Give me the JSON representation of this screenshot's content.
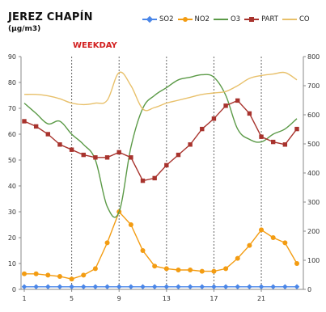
{
  "chart_data": {
    "type": "line",
    "title": "JEREZ CHAPÍN",
    "unit": "(µg/m3)",
    "subtitle": "WEEKDAY",
    "x": [
      1,
      2,
      3,
      4,
      5,
      6,
      7,
      8,
      9,
      10,
      11,
      12,
      13,
      14,
      15,
      16,
      17,
      18,
      19,
      20,
      21,
      22,
      23,
      24
    ],
    "x_ticks": [
      "1",
      "5",
      "9",
      "13",
      "17",
      "21"
    ],
    "x_tick_values": [
      1,
      5,
      9,
      13,
      17,
      21
    ],
    "ylim_left": [
      0,
      90
    ],
    "y_ticks_left": [
      "0",
      "10",
      "20",
      "30",
      "40",
      "50",
      "60",
      "70",
      "80",
      "90"
    ],
    "ylim_right": [
      0,
      800
    ],
    "y_ticks_right": [
      "0",
      "100",
      "200",
      "300",
      "400",
      "500",
      "600",
      "700",
      "800"
    ],
    "vlines": [
      5,
      9,
      13,
      17,
      21
    ],
    "grid": false,
    "legend_position": "top",
    "series": [
      {
        "name": "SO2",
        "axis": "left",
        "color": "#4a86e8",
        "marker": "diamond",
        "smooth": false,
        "values": [
          1,
          1,
          1,
          1,
          1,
          1,
          1,
          1,
          1,
          1,
          1,
          1,
          1,
          1,
          1,
          1,
          1,
          1,
          1,
          1,
          1,
          1,
          1,
          1
        ]
      },
      {
        "name": "NO2",
        "axis": "left",
        "color": "#f39c12",
        "marker": "circle",
        "smooth": false,
        "values": [
          6,
          6,
          5.5,
          5,
          4,
          5.5,
          8,
          18,
          30,
          25,
          15,
          9,
          8,
          7.5,
          7.5,
          7,
          7,
          8,
          12,
          17,
          23,
          20,
          18,
          10
        ]
      },
      {
        "name": "O3",
        "axis": "left",
        "color": "#5b9a47",
        "marker": "none",
        "smooth": true,
        "values": [
          72,
          68,
          64,
          65,
          60,
          56,
          50,
          32,
          30,
          55,
          70,
          75,
          78,
          81,
          82,
          83,
          82,
          75,
          62,
          58,
          57,
          60,
          62,
          66
        ]
      },
      {
        "name": "PART",
        "axis": "left",
        "color": "#a8332d",
        "marker": "square",
        "smooth": false,
        "values": [
          65,
          63,
          60,
          56,
          54,
          52,
          51,
          51,
          53,
          51,
          42,
          43,
          48,
          52,
          56,
          62,
          66,
          71,
          73,
          68,
          59,
          57,
          56,
          62
        ]
      },
      {
        "name": "CO",
        "axis": "right",
        "color": "#e8c06a",
        "marker": "none",
        "smooth": true,
        "values": [
          670,
          670,
          665,
          655,
          640,
          635,
          640,
          650,
          745,
          700,
          620,
          625,
          640,
          650,
          660,
          670,
          675,
          680,
          700,
          725,
          735,
          740,
          745,
          720
        ]
      }
    ]
  }
}
